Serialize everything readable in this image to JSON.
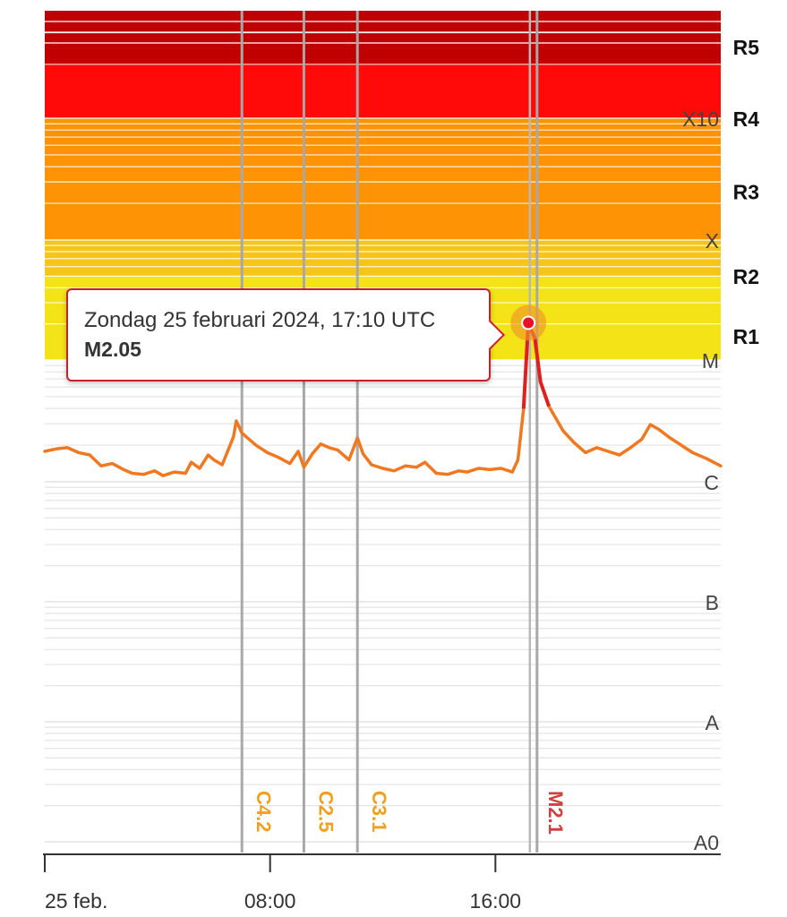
{
  "chart_data": {
    "type": "line",
    "title": "",
    "xlabel": "",
    "ylabel": "",
    "y_scale": "log",
    "x_range_hours": [
      0,
      24
    ],
    "x_ticks": [
      {
        "hour": 0,
        "label": "25 feb."
      },
      {
        "hour": 8,
        "label": "08:00"
      },
      {
        "hour": 16,
        "label": "16:00"
      }
    ],
    "class_labels": [
      {
        "label": "X10",
        "level": 7
      },
      {
        "label": "X",
        "level": 6
      },
      {
        "label": "M",
        "level": 5
      },
      {
        "label": "C",
        "level": 4
      },
      {
        "label": "B",
        "level": 3
      },
      {
        "label": "A",
        "level": 2
      },
      {
        "label": "A0",
        "level": 1
      }
    ],
    "r_scale_labels": [
      {
        "label": "R5",
        "level": 7.4
      },
      {
        "label": "R4",
        "level": 7.0
      },
      {
        "label": "R3",
        "level": 6.4
      },
      {
        "label": "R2",
        "level": 5.7
      },
      {
        "label": "R1",
        "level": 5.2
      }
    ],
    "flare_markers": [
      {
        "hour": 7.0,
        "label": "C4.2",
        "color": "#f0a020"
      },
      {
        "hour": 9.2,
        "label": "C2.5",
        "color": "#f0a020"
      },
      {
        "hour": 11.1,
        "label": "C3.1",
        "color": "#f0a020"
      },
      {
        "hour": 17.35,
        "label": "M2.1",
        "color": "#d04040"
      }
    ],
    "series": [
      {
        "color": "#f07820",
        "points": [
          [
            0.0,
            4.25
          ],
          [
            0.4,
            4.27
          ],
          [
            0.8,
            4.28
          ],
          [
            1.2,
            4.24
          ],
          [
            1.6,
            4.22
          ],
          [
            2.0,
            4.13
          ],
          [
            2.4,
            4.15
          ],
          [
            2.8,
            4.1
          ],
          [
            3.1,
            4.07
          ],
          [
            3.5,
            4.06
          ],
          [
            3.9,
            4.09
          ],
          [
            4.2,
            4.05
          ],
          [
            4.6,
            4.08
          ],
          [
            5.0,
            4.07
          ],
          [
            5.2,
            4.16
          ],
          [
            5.5,
            4.11
          ],
          [
            5.8,
            4.22
          ],
          [
            6.0,
            4.18
          ],
          [
            6.3,
            4.14
          ],
          [
            6.7,
            4.37
          ],
          [
            6.8,
            4.5
          ],
          [
            7.0,
            4.4
          ],
          [
            7.5,
            4.3
          ],
          [
            7.9,
            4.24
          ],
          [
            8.3,
            4.2
          ],
          [
            8.7,
            4.15
          ],
          [
            9.0,
            4.25
          ],
          [
            9.2,
            4.12
          ],
          [
            9.5,
            4.23
          ],
          [
            9.8,
            4.31
          ],
          [
            10.1,
            4.28
          ],
          [
            10.4,
            4.26
          ],
          [
            10.8,
            4.18
          ],
          [
            11.1,
            4.36
          ],
          [
            11.3,
            4.23
          ],
          [
            11.6,
            4.14
          ],
          [
            12.0,
            4.11
          ],
          [
            12.4,
            4.09
          ],
          [
            12.8,
            4.13
          ],
          [
            13.2,
            4.12
          ],
          [
            13.5,
            4.16
          ],
          [
            13.9,
            4.07
          ],
          [
            14.3,
            4.06
          ],
          [
            14.7,
            4.09
          ],
          [
            15.0,
            4.08
          ],
          [
            15.4,
            4.11
          ],
          [
            15.8,
            4.1
          ],
          [
            16.2,
            4.11
          ],
          [
            16.6,
            4.08
          ],
          [
            16.8,
            4.18
          ],
          [
            17.0,
            4.6
          ],
          [
            17.17,
            5.31
          ],
          [
            17.4,
            5.18
          ],
          [
            17.6,
            4.82
          ],
          [
            17.9,
            4.62
          ],
          [
            18.1,
            4.54
          ],
          [
            18.4,
            4.42
          ],
          [
            18.8,
            4.32
          ],
          [
            19.2,
            4.24
          ],
          [
            19.6,
            4.28
          ],
          [
            20.0,
            4.25
          ],
          [
            20.4,
            4.22
          ],
          [
            20.8,
            4.28
          ],
          [
            21.2,
            4.35
          ],
          [
            21.5,
            4.47
          ],
          [
            21.8,
            4.43
          ],
          [
            22.2,
            4.36
          ],
          [
            22.6,
            4.3
          ],
          [
            23.0,
            4.24
          ],
          [
            23.5,
            4.19
          ],
          [
            24.0,
            4.13
          ]
        ]
      }
    ],
    "selected_point": {
      "hour": 17.17,
      "level": 5.31
    }
  },
  "tooltip": {
    "date": "Zondag 25 februari 2024, 17:10 UTC",
    "value": "M2.05"
  }
}
